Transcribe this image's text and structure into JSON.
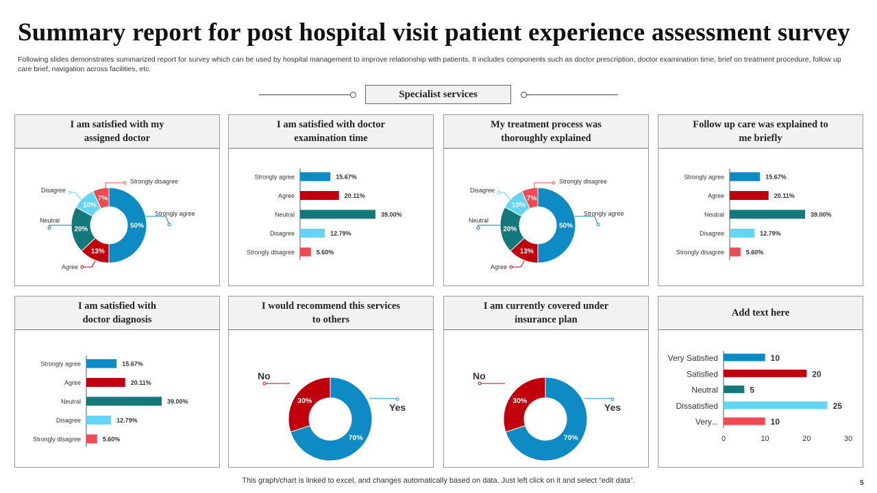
{
  "title": "Summary report for post hospital visit patient experience assessment survey",
  "description": "Following slides demonstrates summarized report for survey which can be used by hospital management to improve relationship with patients. It includes components such as doctor prescription, doctor examination time, brief on treatment procedure, follow up care brief, navigation across facilities, etc.",
  "section_label": "Specialist services",
  "footer": "This graph/chart is linked to excel,  and changes automatically based on data. Just left click on it and select “edit data”.",
  "page_number": "5",
  "colors": {
    "strongly_agree": "#0e8ac4",
    "agree": "#c0000c",
    "neutral": "#14777a",
    "disagree": "#65d5f5",
    "strongly_disagree": "#ee4a4f",
    "yes": "#0e8ac4",
    "no": "#c0000c"
  },
  "panels": [
    {
      "heading": "I am satisfied with  my\nassigned doctor"
    },
    {
      "heading": "I am satisfied with  doctor\nexamination time"
    },
    {
      "heading": "My treatment  process was\nthoroughly  explained"
    },
    {
      "heading": "Follow  up care was explained to\nme briefly"
    },
    {
      "heading": "I am satisfied with\ndoctor diagnosis"
    },
    {
      "heading": "I would  recommend  this services\nto others"
    },
    {
      "heading": "I am currently  covered under\ninsurance plan"
    },
    {
      "heading": "Add text here"
    }
  ],
  "chart_data": [
    {
      "type": "pie",
      "donut": true,
      "categories": [
        "Strongly agree",
        "Agree",
        "Neutral",
        "Disagree",
        "Strongly disagree"
      ],
      "values": [
        50,
        13,
        20,
        10,
        7
      ],
      "value_labels": [
        "50%",
        "13%",
        "20%",
        "10%",
        "7%"
      ]
    },
    {
      "type": "bar",
      "orientation": "horizontal",
      "categories": [
        "Strongly agree",
        "Agree",
        "Neutral",
        "Disagree",
        "Strongly disagree"
      ],
      "values": [
        15.67,
        20.11,
        39.0,
        12.79,
        5.6
      ],
      "value_labels": [
        "15.67%",
        "20.11%",
        "39.00%",
        "12.79%",
        "5.60%"
      ],
      "tick_labels": [
        "Strongly agree",
        "Agree",
        "Neutral",
        "Disagree",
        "Strongly disagree"
      ]
    },
    {
      "type": "pie",
      "donut": true,
      "categories": [
        "Strongly agree",
        "Agree",
        "Neutral",
        "Disagree",
        "Strongly disagree"
      ],
      "values": [
        50,
        13,
        20,
        10,
        7
      ],
      "value_labels": [
        "50%",
        "13%",
        "20%",
        "10%",
        "7%"
      ]
    },
    {
      "type": "bar",
      "orientation": "horizontal",
      "categories": [
        "Strongly agree",
        "Agree",
        "Neutral",
        "Disagree",
        "Strongly disagree"
      ],
      "values": [
        15.67,
        20.11,
        39.0,
        12.79,
        5.6
      ],
      "value_labels": [
        "15.67%",
        "20.11%",
        "39.00%",
        "12.79%",
        "5.60%"
      ],
      "tick_labels": [
        "Strongly agree",
        "Agree",
        "Neutral",
        "Disagree",
        "Strongly disagree"
      ]
    },
    {
      "type": "bar",
      "orientation": "horizontal",
      "categories": [
        "Strongly agree",
        "Agree",
        "Neutral",
        "Disagree",
        "Strongly disagree"
      ],
      "values": [
        15.67,
        20.11,
        39.0,
        12.79,
        5.6
      ],
      "value_labels": [
        "15.67%",
        "20.11%",
        "39.00%",
        "12.79%",
        "5.60%"
      ],
      "tick_labels": [
        "Strongly agree",
        "Agree",
        "Neutral",
        "Disagree",
        "Strongly disagree"
      ]
    },
    {
      "type": "pie",
      "donut": true,
      "categories": [
        "Yes",
        "No"
      ],
      "values": [
        70,
        30
      ],
      "value_labels": [
        "70%",
        "30%"
      ]
    },
    {
      "type": "pie",
      "donut": true,
      "categories": [
        "Yes",
        "No"
      ],
      "values": [
        70,
        30
      ],
      "value_labels": [
        "70%",
        "30%"
      ]
    },
    {
      "type": "bar",
      "orientation": "horizontal",
      "categories": [
        "Very Satisfied",
        "Satisfied",
        "Neutral",
        "Dissatisfied",
        "Very Dissatisfied"
      ],
      "tick_labels": [
        "Very Satisfied",
        "Satisfied",
        "Neutral",
        "Dissatisfied",
        "Very..."
      ],
      "values": [
        10,
        20,
        5,
        25,
        10
      ],
      "value_labels": [
        "10",
        "20",
        "5",
        "25",
        "10"
      ],
      "xlim": [
        0,
        30
      ],
      "xticks": [
        "0",
        "10",
        "20",
        "30"
      ]
    }
  ]
}
